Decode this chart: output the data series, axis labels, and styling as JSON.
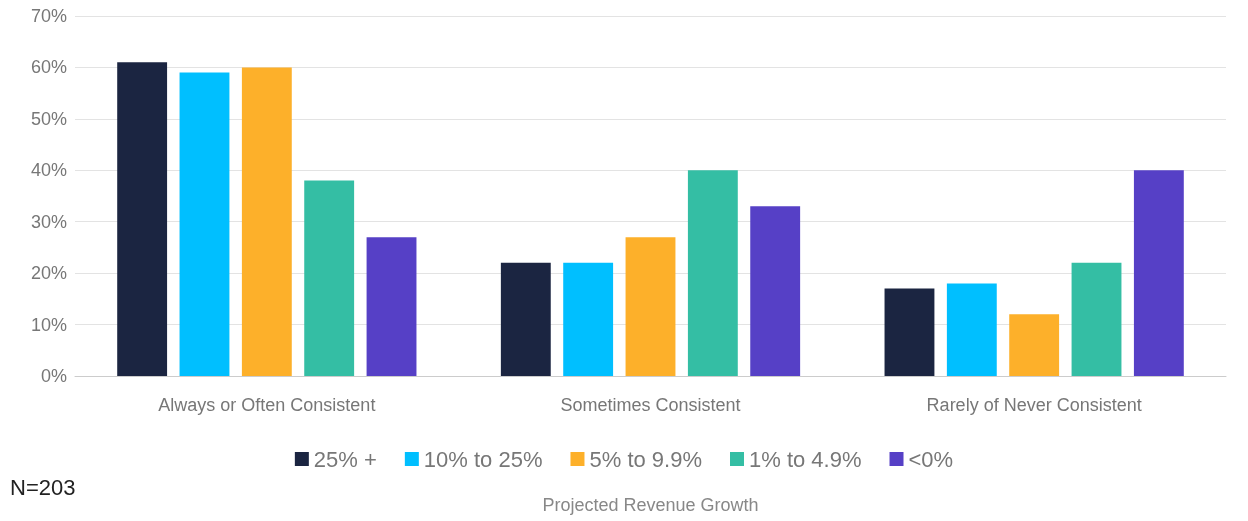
{
  "chart_data": {
    "type": "bar",
    "xlabel": "Projected Revenue Growth",
    "annotations": [
      "N=203"
    ],
    "categories": [
      "Always or Often Consistent",
      "Sometimes Consistent",
      "Rarely of Never Consistent"
    ],
    "series": [
      {
        "name": "25% +",
        "color": "#1b2541",
        "values": [
          61,
          22,
          17
        ]
      },
      {
        "name": "10% to 25%",
        "color": "#00bfff",
        "values": [
          59,
          22,
          18
        ]
      },
      {
        "name": "5% to 9.9%",
        "color": "#fdb02a",
        "values": [
          60,
          27,
          12
        ]
      },
      {
        "name": "1% to 4.9%",
        "color": "#34bea4",
        "values": [
          38,
          40,
          22
        ]
      },
      {
        "name": "<0%",
        "color": "#5640c6",
        "values": [
          27,
          33,
          40
        ]
      }
    ],
    "ylim": [
      0,
      70
    ],
    "yticks": [
      {
        "value": 0,
        "label": "0%"
      },
      {
        "value": 10,
        "label": "10%"
      },
      {
        "value": 20,
        "label": "20%"
      },
      {
        "value": 30,
        "label": "30%"
      },
      {
        "value": 40,
        "label": "40%"
      },
      {
        "value": 50,
        "label": "50%"
      },
      {
        "value": 60,
        "label": "60%"
      },
      {
        "value": 70,
        "label": "70%"
      }
    ],
    "grid": "y",
    "legend": "bottom"
  }
}
